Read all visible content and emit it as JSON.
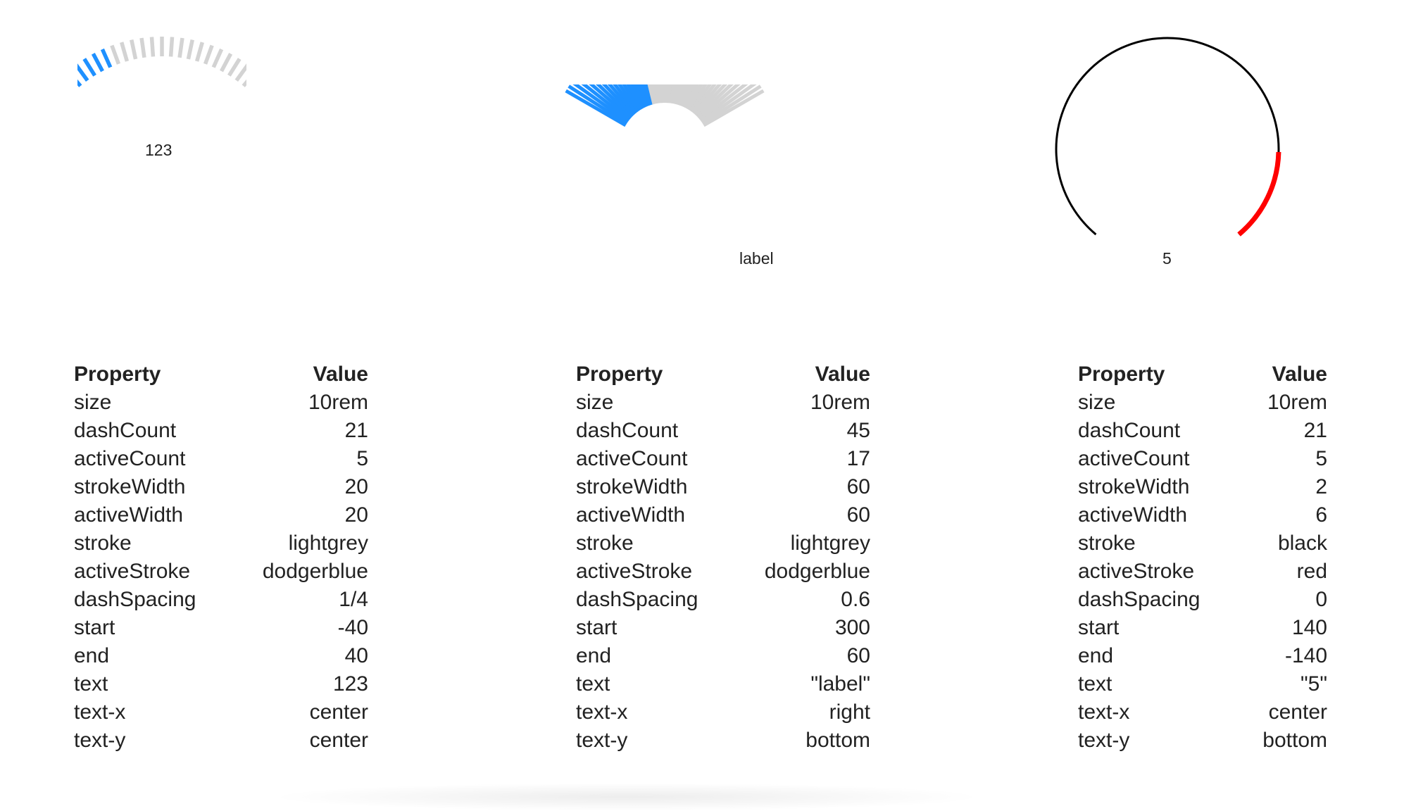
{
  "gauges": [
    {
      "label": "123",
      "dashCount": 21,
      "activeCount": 5,
      "strokeWidth": 20,
      "activeWidth": 20,
      "stroke": "#d3d3d3",
      "activeStroke": "#1e90ff",
      "dashSpacing": 0.25,
      "start": -40,
      "end": 40,
      "textX": "center",
      "textY": "center"
    },
    {
      "label": "label",
      "dashCount": 45,
      "activeCount": 17,
      "strokeWidth": 60,
      "activeWidth": 60,
      "stroke": "#d3d3d3",
      "activeStroke": "#1e90ff",
      "dashSpacing": 0.6,
      "start": 300,
      "end": 60,
      "textX": "right",
      "textY": "bottom"
    },
    {
      "label": "5",
      "dashCount": 21,
      "activeCount": 5,
      "strokeWidth": 2,
      "activeWidth": 6,
      "stroke": "#000000",
      "activeStroke": "#ff0000",
      "dashSpacing": 0,
      "start": 140,
      "end": -140,
      "textX": "center",
      "textY": "bottom"
    }
  ],
  "tables": [
    {
      "header": {
        "property": "Property",
        "value": "Value"
      },
      "rows": [
        {
          "property": "size",
          "value": "10rem"
        },
        {
          "property": "dashCount",
          "value": "21"
        },
        {
          "property": "activeCount",
          "value": "5"
        },
        {
          "property": "strokeWidth",
          "value": "20"
        },
        {
          "property": "activeWidth",
          "value": "20"
        },
        {
          "property": "stroke",
          "value": "lightgrey"
        },
        {
          "property": "activeStroke",
          "value": "dodgerblue"
        },
        {
          "property": "dashSpacing",
          "value": "1/4"
        },
        {
          "property": "start",
          "value": "-40"
        },
        {
          "property": "end",
          "value": "40"
        },
        {
          "property": "text",
          "value": "123"
        },
        {
          "property": "text-x",
          "value": "center"
        },
        {
          "property": "text-y",
          "value": "center"
        }
      ]
    },
    {
      "header": {
        "property": "Property",
        "value": "Value"
      },
      "rows": [
        {
          "property": "size",
          "value": "10rem"
        },
        {
          "property": "dashCount",
          "value": "45"
        },
        {
          "property": "activeCount",
          "value": "17"
        },
        {
          "property": "strokeWidth",
          "value": "60"
        },
        {
          "property": "activeWidth",
          "value": "60"
        },
        {
          "property": "stroke",
          "value": "lightgrey"
        },
        {
          "property": "activeStroke",
          "value": "dodgerblue"
        },
        {
          "property": "dashSpacing",
          "value": "0.6"
        },
        {
          "property": "start",
          "value": "300"
        },
        {
          "property": "end",
          "value": "60"
        },
        {
          "property": "text",
          "value": "\"label\""
        },
        {
          "property": "text-x",
          "value": "right"
        },
        {
          "property": "text-y",
          "value": "bottom"
        }
      ]
    },
    {
      "header": {
        "property": "Property",
        "value": "Value"
      },
      "rows": [
        {
          "property": "size",
          "value": "10rem"
        },
        {
          "property": "dashCount",
          "value": "21"
        },
        {
          "property": "activeCount",
          "value": "5"
        },
        {
          "property": "strokeWidth",
          "value": "2"
        },
        {
          "property": "activeWidth",
          "value": "6"
        },
        {
          "property": "stroke",
          "value": "black"
        },
        {
          "property": "activeStroke",
          "value": "red"
        },
        {
          "property": "dashSpacing",
          "value": "0"
        },
        {
          "property": "start",
          "value": "140"
        },
        {
          "property": "end",
          "value": "-140"
        },
        {
          "property": "text",
          "value": "\"5\""
        },
        {
          "property": "text-x",
          "value": "center"
        },
        {
          "property": "text-y",
          "value": "bottom"
        }
      ]
    }
  ]
}
